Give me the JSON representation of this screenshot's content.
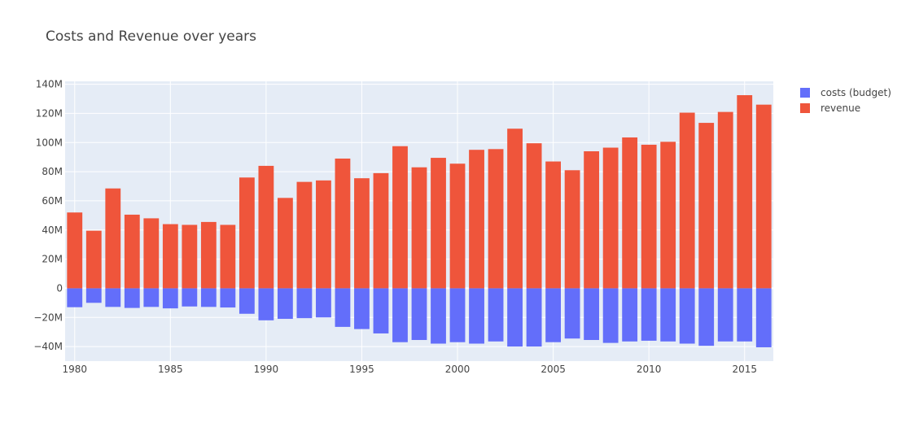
{
  "chart_data": {
    "type": "bar",
    "title": "Costs and Revenue over years",
    "barmode": "relative",
    "xlabel": "",
    "ylabel": "",
    "x": [
      1980,
      1981,
      1982,
      1983,
      1984,
      1985,
      1986,
      1987,
      1988,
      1989,
      1990,
      1991,
      1992,
      1993,
      1994,
      1995,
      1996,
      1997,
      1998,
      1999,
      2000,
      2001,
      2002,
      2003,
      2004,
      2005,
      2006,
      2007,
      2008,
      2009,
      2010,
      2011,
      2012,
      2013,
      2014,
      2015,
      2016
    ],
    "xticks": [
      "1980",
      "1985",
      "1990",
      "1995",
      "2000",
      "2005",
      "2010",
      "2015"
    ],
    "yticks": [
      "140M",
      "120M",
      "100M",
      "80M",
      "60M",
      "40M",
      "20M",
      "0",
      "−20M",
      "−40M"
    ],
    "ylim": [
      -50000000,
      142000000
    ],
    "xlim": [
      1979.5,
      2016.5
    ],
    "grid": true,
    "legend_position": "top-right",
    "background": "#e5ecf6",
    "series": [
      {
        "name": "costs (budget)",
        "color": "#636efa",
        "values": [
          -13000000,
          -10000000,
          -12800000,
          -13500000,
          -12800000,
          -13800000,
          -12500000,
          -12800000,
          -13200000,
          -17500000,
          -22000000,
          -21000000,
          -20500000,
          -20000000,
          -26500000,
          -28000000,
          -31000000,
          -37000000,
          -35500000,
          -38000000,
          -37000000,
          -38000000,
          -36500000,
          -40000000,
          -40000000,
          -37000000,
          -34500000,
          -35500000,
          -37500000,
          -36500000,
          -36000000,
          -36500000,
          -38000000,
          -39500000,
          -36500000,
          -36500000,
          -40500000
        ]
      },
      {
        "name": "revenue",
        "color": "#ef553b",
        "values": [
          52000000,
          39500000,
          68500000,
          50500000,
          48000000,
          44000000,
          43500000,
          45500000,
          43500000,
          76000000,
          84000000,
          62000000,
          73000000,
          74000000,
          89000000,
          75500000,
          79000000,
          97500000,
          83000000,
          89500000,
          85500000,
          95000000,
          95500000,
          109500000,
          99500000,
          87000000,
          81000000,
          94000000,
          96500000,
          103500000,
          98500000,
          100500000,
          120500000,
          113500000,
          121000000,
          132500000,
          126000000
        ]
      }
    ]
  }
}
